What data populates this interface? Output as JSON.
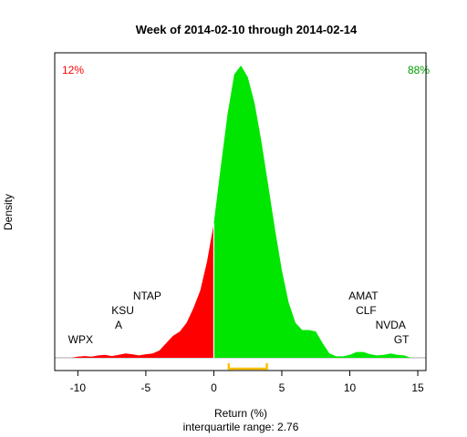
{
  "chart_data": {
    "type": "area",
    "title": "Week of 2014-02-10 through 2014-02-14",
    "xlabel": "Return (%)",
    "ylabel": "Density",
    "subtitle": "interquartile range: 2.76",
    "xlim": [
      -11.7,
      15.6
    ],
    "ylim": [
      0,
      1
    ],
    "x_ticks": [
      -10,
      -5,
      0,
      5,
      10,
      15
    ],
    "x_tick_labels": [
      "-10",
      "-5",
      "0",
      "5",
      "10",
      "15"
    ],
    "grid": false,
    "legend": "none",
    "negative_share_label": "12%",
    "positive_share_label": "88%",
    "negative_color": "#ff0000",
    "positive_color": "#00e600",
    "iqr_color": "#ffc000",
    "iqr_range": [
      1.1,
      3.9
    ],
    "density_x": [
      -10.5,
      -10,
      -9.5,
      -9,
      -8.5,
      -8,
      -7.5,
      -7,
      -6.5,
      -6,
      -5.5,
      -5,
      -4.5,
      -4,
      -3.5,
      -3,
      -2.5,
      -2,
      -1.5,
      -1,
      -0.5,
      0,
      0.5,
      1,
      1.5,
      2,
      2.5,
      3,
      3.5,
      4,
      4.5,
      5,
      5.5,
      6,
      6.5,
      7,
      7.5,
      8,
      8.5,
      9,
      9.5,
      10,
      10.5,
      11,
      11.5,
      12,
      12.5,
      13,
      13.5,
      14,
      14.5
    ],
    "density_y": [
      0.0,
      0.004,
      0.006,
      0.004,
      0.008,
      0.01,
      0.006,
      0.01,
      0.015,
      0.012,
      0.008,
      0.012,
      0.015,
      0.025,
      0.05,
      0.075,
      0.09,
      0.12,
      0.17,
      0.23,
      0.33,
      0.46,
      0.65,
      0.83,
      0.97,
      1.0,
      0.96,
      0.87,
      0.74,
      0.59,
      0.44,
      0.3,
      0.19,
      0.12,
      0.095,
      0.095,
      0.09,
      0.05,
      0.015,
      0.005,
      0.005,
      0.01,
      0.02,
      0.02,
      0.012,
      0.008,
      0.01,
      0.015,
      0.01,
      0.008,
      0.0
    ],
    "annotations": [
      {
        "text": "WPX",
        "x": -9.8,
        "y": 0.05
      },
      {
        "text": "A",
        "x": -7.0,
        "y": 0.1
      },
      {
        "text": "KSU",
        "x": -6.7,
        "y": 0.15
      },
      {
        "text": "NTAP",
        "x": -4.9,
        "y": 0.2
      },
      {
        "text": "AMAT",
        "x": 11.0,
        "y": 0.2
      },
      {
        "text": "CLF",
        "x": 11.2,
        "y": 0.15
      },
      {
        "text": "NVDA",
        "x": 13.0,
        "y": 0.1
      },
      {
        "text": "GT",
        "x": 13.8,
        "y": 0.05
      }
    ]
  }
}
